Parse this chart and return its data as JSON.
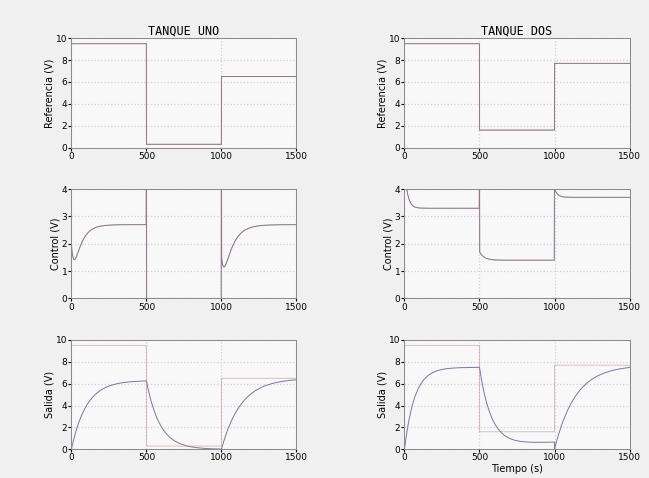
{
  "title_left": "TANQUE UNO",
  "title_right": "TANQUE DOS",
  "ylabel_ref": "Referencia (V)",
  "ylabel_ctrl": "Control (V)",
  "ylabel_sal": "Salida (V)",
  "xlim": [
    0,
    1500
  ],
  "ylim_ref": [
    0,
    10
  ],
  "ylim_ctrl": [
    0,
    4
  ],
  "ylim_sal": [
    0,
    10
  ],
  "background_color": "#f0f0f0",
  "axes_bg": "#f8f8f8",
  "grid_color": "#d0d0e0",
  "line_color_blue": "#7878a0",
  "line_color_red": "#c07070",
  "line_color_pink": "#d09090",
  "ref1_val1": 9.5,
  "ref1_val2": 0.3,
  "ref1_val3": 6.5,
  "ref2_val1": 9.5,
  "ref2_val2": 1.6,
  "ref2_val3": 7.7
}
